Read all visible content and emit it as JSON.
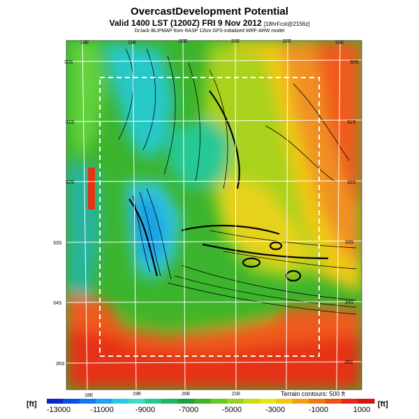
{
  "header": {
    "title": "OvercastDevelopment Potential",
    "subtitle": "Valid 1400 LST (1200Z) FRI 9 Nov 2012",
    "subtitle_tag": "[18hrFcst@2156z]",
    "source_line": "DrJack BLIPMAP from RASP 12km GFS-initialized WRF-ARW model"
  },
  "map": {
    "lon_labels_top": [
      "18E",
      "19E",
      "20E",
      "21E",
      "22E",
      "23E"
    ],
    "lon_labels_bottom": [
      "18E",
      "19E",
      "20E",
      "21E"
    ],
    "lat_labels_left": [
      "30S",
      "31S",
      "32S",
      "33S",
      "34S",
      "35S"
    ],
    "lat_labels_right": [
      "30S",
      "31S",
      "32S",
      "33S",
      "34S",
      "35S"
    ],
    "terrain_note": "Terrain contours: 500 ft"
  },
  "colorbar": {
    "unit_left": "[ft]",
    "unit_right": "[ft]",
    "tick_labels": [
      "-13000",
      "-11000",
      "-9000",
      "-7000",
      "-5000",
      "-3000",
      "-1000",
      "1000"
    ],
    "colors": [
      "#0a28c8",
      "#0a50dc",
      "#1478f0",
      "#1ea0f0",
      "#28c8e6",
      "#3cdcc8",
      "#28c896",
      "#1eb464",
      "#1ea03c",
      "#3cb428",
      "#64c81e",
      "#96d21e",
      "#c8dc14",
      "#e6e614",
      "#f0c814",
      "#f0a014",
      "#f07814",
      "#f05014",
      "#e62814",
      "#d21414"
    ]
  }
}
